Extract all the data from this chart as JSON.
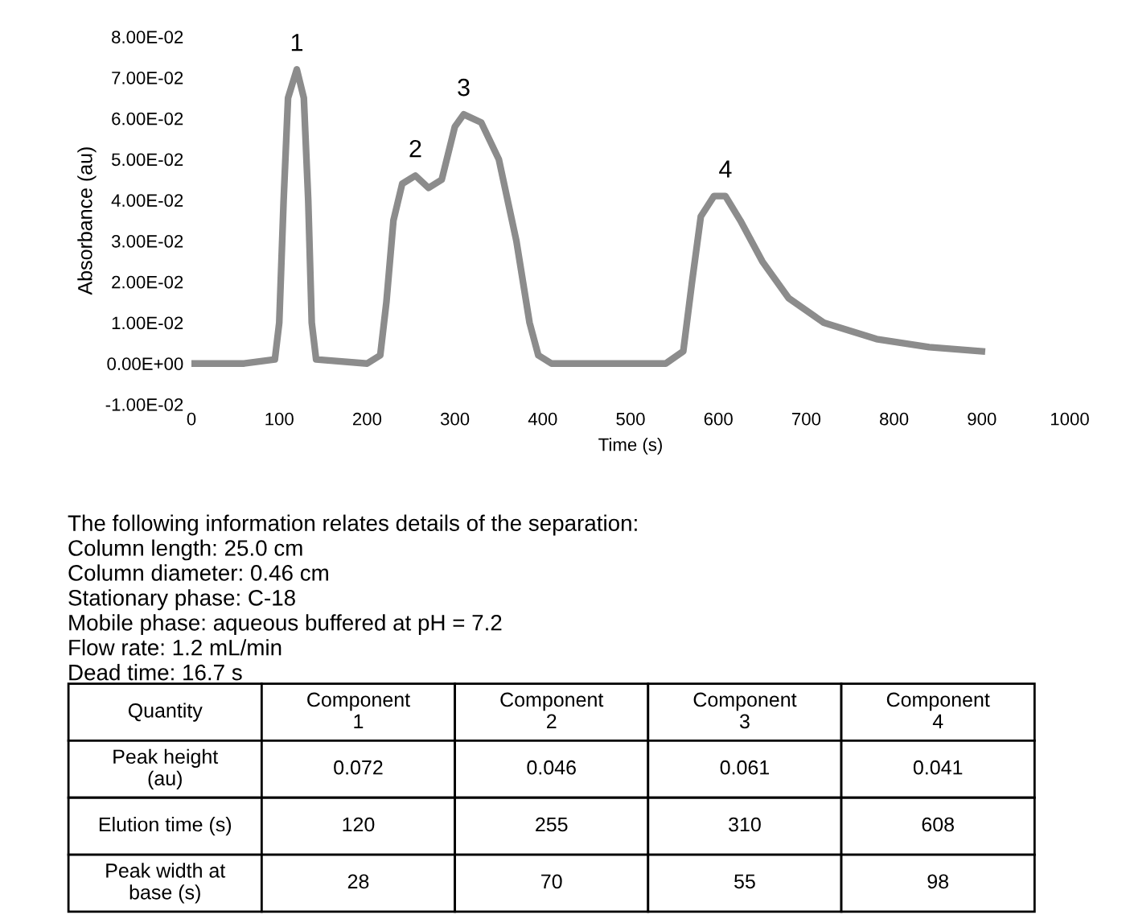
{
  "chart_data": {
    "type": "line",
    "xlabel": "Time (s)",
    "ylabel": "Absorbance (au)",
    "xlim": [
      0,
      1000
    ],
    "xticks": [
      0,
      100,
      200,
      300,
      400,
      500,
      600,
      700,
      800,
      900,
      1000
    ],
    "ylim": [
      -0.01,
      0.08
    ],
    "yticks": [
      {
        "value": -0.01,
        "label": "-1.00E-02"
      },
      {
        "value": 0,
        "label": "0.00E+00"
      },
      {
        "value": 0.01,
        "label": "1.00E-02"
      },
      {
        "value": 0.02,
        "label": "2.00E-02"
      },
      {
        "value": 0.03,
        "label": "3.00E-02"
      },
      {
        "value": 0.04,
        "label": "4.00E-02"
      },
      {
        "value": 0.05,
        "label": "5.00E-02"
      },
      {
        "value": 0.06,
        "label": "6.00E-02"
      },
      {
        "value": 0.07,
        "label": "7.00E-02"
      },
      {
        "value": 0.08,
        "label": "8.00E-02"
      }
    ],
    "grid": false,
    "marker": "none",
    "line_style": "solid",
    "series": [
      {
        "color": "#8c8c8c",
        "x": [
          0,
          60,
          95,
          100,
          105,
          110,
          120,
          128,
          133,
          137,
          142,
          200,
          215,
          222,
          230,
          240,
          255,
          270,
          285,
          300,
          310,
          330,
          350,
          370,
          385,
          395,
          410,
          540,
          560,
          570,
          580,
          595,
          608,
          625,
          650,
          680,
          720,
          780,
          840,
          900
        ],
        "values": [
          0,
          0,
          0.001,
          0.01,
          0.04,
          0.065,
          0.072,
          0.065,
          0.04,
          0.01,
          0.001,
          0,
          0.002,
          0.015,
          0.035,
          0.044,
          0.046,
          0.043,
          0.045,
          0.058,
          0.061,
          0.059,
          0.05,
          0.03,
          0.01,
          0.002,
          0,
          0,
          0.003,
          0.02,
          0.036,
          0.041,
          0.041,
          0.035,
          0.025,
          0.016,
          0.01,
          0.006,
          0.004,
          0.003
        ]
      }
    ],
    "annotations": [
      {
        "text": "1",
        "x": 120,
        "y": 0.072
      },
      {
        "text": "2",
        "x": 255,
        "y": 0.046
      },
      {
        "text": "3",
        "x": 310,
        "y": 0.061
      },
      {
        "text": "4",
        "x": 608,
        "y": 0.041
      },
      "The following information relates details of the separation:\nColumn length: 25.0 cm\nColumn diameter: 0.46 cm\nStationary phase: C-18\nMobile phase: aqueous buffered at pH = 7.2\nFlow rate: 1.2 mL/min\nDead time: 16.7 s",
      "Quantity",
      "Component\n1",
      "Component\n2",
      "Component\n3",
      "Component\n4",
      "Peak height\n(au)",
      "0.072",
      "0.046",
      "0.061",
      "0.041",
      "Elution time (s)",
      "120",
      "255",
      "310",
      "608",
      "Peak width at\nbase (s)",
      "28",
      "70",
      "55",
      "98"
    ]
  }
}
